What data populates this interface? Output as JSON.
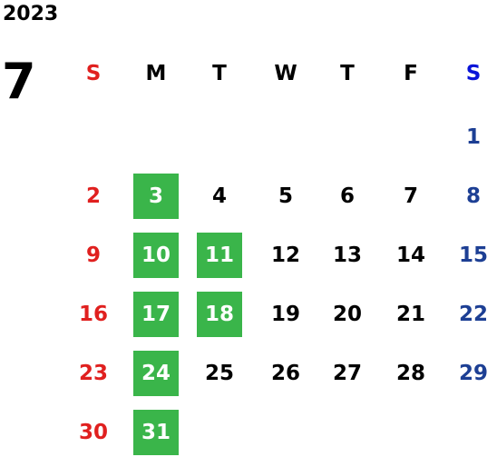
{
  "calendar": {
    "year": "2023",
    "month": "7",
    "weekdays": [
      "S",
      "M",
      "T",
      "W",
      "T",
      "F",
      "S"
    ],
    "weeks": [
      [
        null,
        null,
        null,
        null,
        null,
        null,
        {
          "day": 1
        }
      ],
      [
        {
          "day": 2
        },
        {
          "day": 3,
          "highlight": true
        },
        {
          "day": 4
        },
        {
          "day": 5
        },
        {
          "day": 6
        },
        {
          "day": 7
        },
        {
          "day": 8
        }
      ],
      [
        {
          "day": 9
        },
        {
          "day": 10,
          "highlight": true
        },
        {
          "day": 11,
          "highlight": true
        },
        {
          "day": 12
        },
        {
          "day": 13
        },
        {
          "day": 14
        },
        {
          "day": 15
        }
      ],
      [
        {
          "day": 16
        },
        {
          "day": 17,
          "highlight": true
        },
        {
          "day": 18,
          "highlight": true
        },
        {
          "day": 19
        },
        {
          "day": 20
        },
        {
          "day": 21
        },
        {
          "day": 22
        }
      ],
      [
        {
          "day": 23
        },
        {
          "day": 24,
          "highlight": true
        },
        {
          "day": 25
        },
        {
          "day": 26
        },
        {
          "day": 27
        },
        {
          "day": 28
        },
        {
          "day": 29
        }
      ],
      [
        {
          "day": 30
        },
        {
          "day": 31,
          "highlight": true
        },
        null,
        null,
        null,
        null,
        null
      ]
    ],
    "colors": {
      "sunday": "#e0201f",
      "saturday": "#1d3f94",
      "saturday_header": "#0a14d8",
      "weekday": "#000000",
      "highlight": "#3ab54a",
      "highlight_text": "#ffffff"
    }
  }
}
